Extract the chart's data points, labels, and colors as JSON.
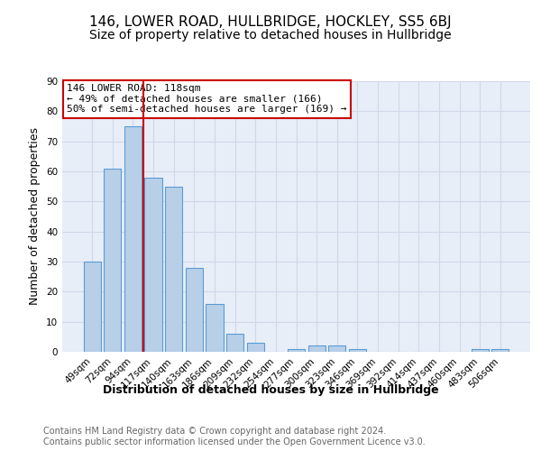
{
  "title": "146, LOWER ROAD, HULLBRIDGE, HOCKLEY, SS5 6BJ",
  "subtitle": "Size of property relative to detached houses in Hullbridge",
  "xlabel": "Distribution of detached houses by size in Hullbridge",
  "ylabel": "Number of detached properties",
  "categories": [
    "49sqm",
    "72sqm",
    "94sqm",
    "117sqm",
    "140sqm",
    "163sqm",
    "186sqm",
    "209sqm",
    "232sqm",
    "254sqm",
    "277sqm",
    "300sqm",
    "323sqm",
    "346sqm",
    "369sqm",
    "392sqm",
    "414sqm",
    "437sqm",
    "460sqm",
    "483sqm",
    "506sqm"
  ],
  "values": [
    30,
    61,
    75,
    58,
    55,
    28,
    16,
    6,
    3,
    0,
    1,
    2,
    2,
    1,
    0,
    0,
    0,
    0,
    0,
    1,
    1
  ],
  "bar_color": "#b8cfe8",
  "bar_edge_color": "#5b9bd5",
  "vline_x": 2.5,
  "vline_color": "#cc0000",
  "annotation_text": "146 LOWER ROAD: 118sqm\n← 49% of detached houses are smaller (166)\n50% of semi-detached houses are larger (169) →",
  "annotation_box_color": "#ffffff",
  "annotation_box_edge": "#cc0000",
  "ylim": [
    0,
    90
  ],
  "yticks": [
    0,
    10,
    20,
    30,
    40,
    50,
    60,
    70,
    80,
    90
  ],
  "grid_color": "#d0d8e8",
  "background_color": "#e8eef8",
  "fig_background": "#ffffff",
  "footer_text": "Contains HM Land Registry data © Crown copyright and database right 2024.\nContains public sector information licensed under the Open Government Licence v3.0.",
  "title_fontsize": 11,
  "subtitle_fontsize": 10,
  "xlabel_fontsize": 9,
  "ylabel_fontsize": 9,
  "tick_fontsize": 7.5,
  "annotation_fontsize": 8,
  "footer_fontsize": 7
}
